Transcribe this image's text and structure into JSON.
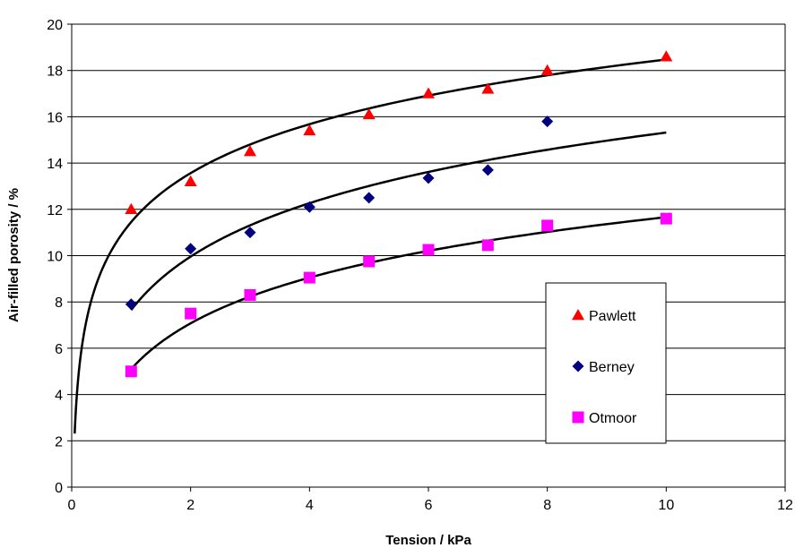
{
  "chart_data": {
    "type": "scatter",
    "title": "",
    "xlabel": "Tension / kPa",
    "ylabel": "Air-filled porosity / %",
    "xlim": [
      0,
      12
    ],
    "ylim": [
      0,
      20
    ],
    "x_ticks": [
      0,
      2,
      4,
      6,
      8,
      10,
      12
    ],
    "y_ticks": [
      0,
      2,
      4,
      6,
      8,
      10,
      12,
      14,
      16,
      18,
      20
    ],
    "grid": "horizontal",
    "legend_position": "right",
    "series": [
      {
        "name": "Pawlett",
        "marker": "triangle",
        "color": "#ff0000",
        "points": [
          [
            1,
            12.0
          ],
          [
            2,
            13.2
          ],
          [
            3,
            14.5
          ],
          [
            4,
            15.4
          ],
          [
            5,
            16.1
          ],
          [
            6,
            17.0
          ],
          [
            7,
            17.2
          ],
          [
            8,
            18.0
          ],
          [
            10,
            18.6
          ]
        ],
        "trendline": {
          "type": "log",
          "a": 11.45,
          "b": 3.05,
          "x_range": [
            0.05,
            10
          ]
        }
      },
      {
        "name": "Berney",
        "marker": "diamond",
        "color": "#000080",
        "points": [
          [
            1,
            7.9
          ],
          [
            2,
            10.3
          ],
          [
            3,
            11.0
          ],
          [
            4,
            12.1
          ],
          [
            5,
            12.5
          ],
          [
            6,
            13.35
          ],
          [
            7,
            13.7
          ],
          [
            8,
            15.8
          ]
        ],
        "trendline": {
          "type": "log",
          "a": 7.65,
          "b": 3.33,
          "x_range": [
            1,
            10
          ]
        }
      },
      {
        "name": "Otmoor",
        "marker": "square",
        "color": "#ff00ff",
        "points": [
          [
            1,
            5.0
          ],
          [
            2,
            7.5
          ],
          [
            3,
            8.3
          ],
          [
            4,
            9.05
          ],
          [
            5,
            9.75
          ],
          [
            6,
            10.25
          ],
          [
            7,
            10.45
          ],
          [
            8,
            11.3
          ],
          [
            10,
            11.6
          ]
        ],
        "trendline": {
          "type": "log",
          "a": 5.1,
          "b": 2.85,
          "x_range": [
            1,
            10
          ]
        }
      }
    ]
  }
}
